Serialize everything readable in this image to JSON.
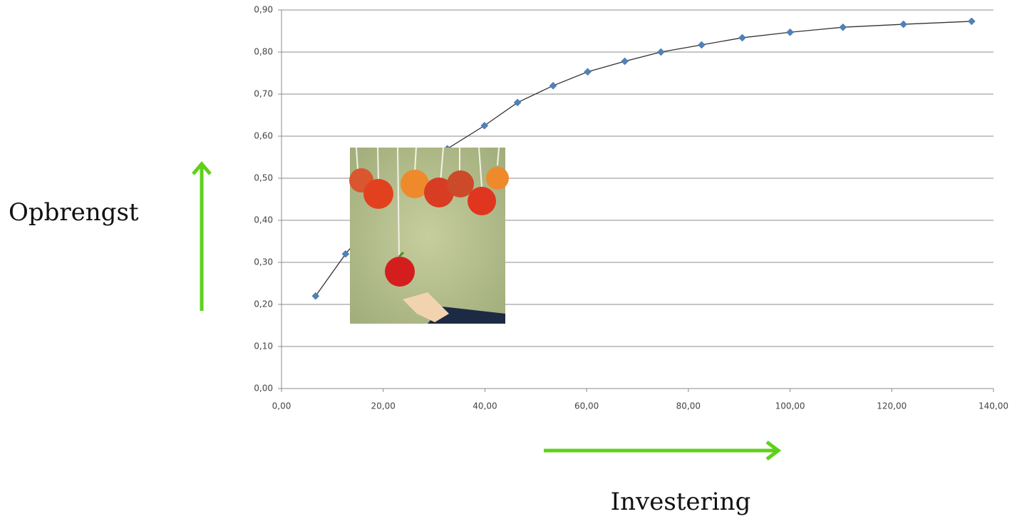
{
  "chart_data": {
    "type": "scatter",
    "ylabel": "Opbrengst",
    "xlabel": "Investering",
    "series": [
      {
        "color": "#4f81bd",
        "line_color": "#333333",
        "x": [
          6.7,
          12.6,
          18.8,
          25.3,
          32.6,
          39.9,
          46.4,
          53.4,
          60.2,
          67.5,
          74.6,
          82.6,
          90.6,
          100,
          110.4,
          122.3,
          135.7
        ],
        "values": [
          0.22,
          0.32,
          0.41,
          0.49,
          0.57,
          0.625,
          0.68,
          0.72,
          0.753,
          0.778,
          0.8,
          0.817,
          0.834,
          0.847,
          0.859,
          0.866,
          0.873
        ]
      }
    ],
    "xlim": [
      0,
      140
    ],
    "xticks": [
      {
        "value": 0,
        "label": "0,00"
      },
      {
        "value": 20,
        "label": "20,00"
      },
      {
        "value": 40,
        "label": "40,00"
      },
      {
        "value": 60,
        "label": "60,00"
      },
      {
        "value": 80,
        "label": "80,00"
      },
      {
        "value": 100,
        "label": "100,00"
      },
      {
        "value": 120,
        "label": "120,00"
      },
      {
        "value": 140,
        "label": "140,00"
      }
    ],
    "ylim": [
      0,
      0.9
    ],
    "yticks": [
      {
        "value": 0,
        "label": "0,00"
      },
      {
        "value": 0.1,
        "label": "0,10"
      },
      {
        "value": 0.2,
        "label": "0,20"
      },
      {
        "value": 0.3,
        "label": "0,30"
      },
      {
        "value": 0.4,
        "label": "0,40"
      },
      {
        "value": 0.5,
        "label": "0,50"
      },
      {
        "value": 0.6,
        "label": "0,60"
      },
      {
        "value": 0.7,
        "label": "0,70"
      },
      {
        "value": 0.8,
        "label": "0,80"
      },
      {
        "value": 0.9,
        "label": "0,90"
      }
    ],
    "grid": true
  }
}
